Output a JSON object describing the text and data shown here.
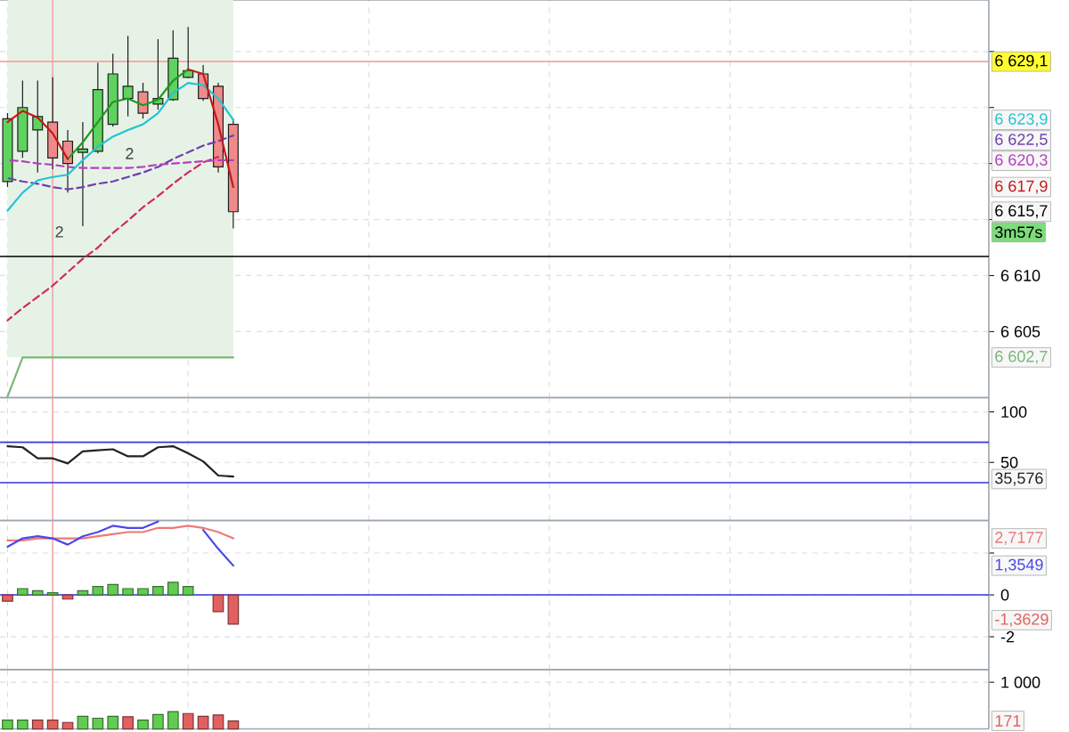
{
  "chart_data": [
    {
      "type": "candlestick",
      "categories": [
        null,
        null,
        null,
        null,
        null,
        null,
        null,
        null,
        null,
        null,
        null,
        null,
        null,
        null,
        null,
        null,
        null,
        null,
        null,
        null,
        null,
        null,
        null,
        null,
        null,
        null,
        null,
        null,
        null,
        null,
        null,
        null,
        null,
        null,
        null,
        null,
        null,
        null,
        null,
        null,
        null,
        null,
        null,
        null,
        null,
        null,
        null,
        null,
        null,
        null,
        null,
        null,
        null,
        null,
        null,
        null,
        null,
        null,
        null,
        null,
        null,
        null,
        null,
        null,
        null,
        null
      ],
      "ohlc": [
        [
          6618.4,
          6624.5,
          6617.9,
          6624.0
        ],
        [
          6621.1,
          6627.4,
          6620.5,
          6625.0
        ],
        [
          6623.0,
          6627.4,
          6619.2,
          6624.2
        ],
        [
          6623.7,
          6627.7,
          6619.5,
          6620.5
        ],
        [
          6622.0,
          6623.0,
          6617.4,
          6620.0
        ],
        [
          6621.0,
          6623.7,
          6614.4,
          6621.3
        ],
        [
          6621.1,
          6629.0,
          6620.9,
          6626.6
        ],
        [
          6623.5,
          6629.8,
          6623.3,
          6628.0
        ],
        [
          6625.8,
          6631.4,
          6624.2,
          6626.9
        ],
        [
          6626.4,
          6627.2,
          6624.0,
          6624.5
        ],
        [
          6625.3,
          6631.1,
          6624.8,
          6625.8
        ],
        [
          6625.7,
          6631.9,
          6625.6,
          6629.4
        ],
        [
          6627.7,
          6632.2,
          6627.6,
          6628.3
        ],
        [
          6628.0,
          6628.8,
          6625.6,
          6625.8
        ],
        [
          6626.9,
          6627.2,
          6619.2,
          6619.7
        ],
        [
          6623.5,
          6624.0,
          6614.2,
          6615.7
        ],
        null,
        null,
        null,
        null,
        null,
        null,
        null,
        null,
        null,
        null,
        null,
        null,
        null,
        null,
        null,
        null,
        null,
        null,
        null,
        null,
        null,
        null,
        null,
        null,
        null,
        null,
        null,
        null,
        null,
        null,
        null,
        null,
        null,
        null,
        null,
        null,
        null,
        null,
        null,
        null,
        null,
        null,
        null,
        null,
        null,
        null,
        null,
        null,
        null,
        null
      ],
      "series": [
        {
          "type": "line",
          "color": "#78b878",
          "values": [
            6599.2,
            6602.7,
            6602.7,
            6602.7,
            6602.7,
            6602.7,
            6602.7,
            6602.7,
            6602.7,
            6602.7,
            6602.7,
            6602.7,
            6602.7,
            6602.7,
            6602.7,
            6602.7,
            null,
            null,
            null,
            null,
            null,
            null,
            null,
            null,
            null,
            null,
            null,
            null,
            null,
            null,
            null,
            null,
            null,
            null,
            null,
            null,
            null,
            null,
            null,
            null,
            null,
            null,
            null,
            null,
            null,
            null,
            null,
            null,
            null,
            null,
            null,
            null,
            null,
            null,
            null,
            null,
            null,
            null,
            null,
            null,
            null,
            null,
            null,
            null,
            null,
            null
          ],
          "lower": [
            6602.7,
            6602.7,
            6602.7,
            6602.7,
            6602.7,
            6602.7,
            6602.7,
            6602.7,
            6602.7,
            6602.7,
            6602.7,
            6602.7,
            6602.7,
            6602.7,
            6602.7,
            6602.7,
            null,
            null,
            null,
            null,
            null,
            null,
            null,
            null,
            null,
            null,
            null,
            null,
            null,
            null,
            null,
            null,
            null,
            null,
            null,
            null,
            null,
            null,
            null,
            null,
            null,
            null,
            null,
            null,
            null,
            null,
            null,
            null,
            null,
            null,
            null,
            null,
            null,
            null,
            null,
            null,
            null,
            null,
            null,
            null,
            null,
            null,
            null,
            null,
            null,
            null
          ],
          "upper": [
            6634.6,
            6634.6,
            6634.6,
            6634.6,
            6634.6,
            6634.6,
            6634.6,
            6634.6,
            6634.6,
            6634.6,
            6634.6,
            6634.6,
            6634.6,
            6634.6,
            6634.6,
            6634.6,
            null,
            null,
            null,
            null,
            null,
            null,
            null,
            null,
            null,
            null,
            null,
            null,
            null,
            null,
            null,
            null,
            null,
            null,
            null,
            null,
            null,
            null,
            null,
            null,
            null,
            null,
            null,
            null,
            null,
            null,
            null,
            null,
            null,
            null,
            null,
            null,
            null,
            null,
            null,
            null,
            null,
            null,
            null,
            null,
            null,
            null,
            null,
            null,
            null,
            null
          ]
        },
        {
          "type": "line",
          "color": "#cf2a5c",
          "line_style": "dashed",
          "values": [
            6606.0,
            6607.1,
            6608.1,
            6609.1,
            6610.3,
            6611.5,
            6612.5,
            6613.8,
            6614.9,
            6616.1,
            6617.1,
            6618.2,
            6619.2,
            6620.1,
            6620.6,
            null,
            null,
            null,
            null,
            null,
            null,
            null,
            null,
            null,
            null,
            null,
            null,
            null,
            null,
            null,
            null,
            null,
            null,
            null,
            null,
            null,
            null,
            null,
            null,
            null,
            null,
            null,
            null,
            null,
            null,
            null,
            null,
            null,
            null,
            null,
            null,
            null,
            null,
            null,
            null,
            null,
            null,
            null,
            null,
            null,
            null,
            null,
            null,
            null,
            null,
            null
          ]
        },
        {
          "type": "line",
          "color": "#7040b0",
          "line_style": "dashed",
          "values": [
            6618.7,
            6618.4,
            6618.2,
            6617.9,
            6617.7,
            6617.9,
            6618.2,
            6618.4,
            6618.8,
            6619.2,
            6619.7,
            6620.4,
            6621.0,
            6621.6,
            6622.0,
            6622.5,
            null,
            null,
            null,
            null,
            null,
            null,
            null,
            null,
            null,
            null,
            null,
            null,
            null,
            null,
            null,
            null,
            null,
            null,
            null,
            null,
            null,
            null,
            null,
            null,
            null,
            null,
            null,
            null,
            null,
            null,
            null,
            null,
            null,
            null,
            null,
            null,
            null,
            null,
            null,
            null,
            null,
            null,
            null,
            null,
            null,
            null,
            null,
            null,
            null,
            null
          ]
        },
        {
          "type": "line",
          "color": "#b540c0",
          "line_style": "dashed",
          "values": [
            6620.3,
            6620.2,
            6620.0,
            6619.9,
            6619.7,
            6619.6,
            6619.6,
            6619.6,
            6619.6,
            6619.7,
            6619.9,
            6620.0,
            6620.1,
            6620.2,
            6620.3,
            6620.3,
            null,
            null,
            null,
            null,
            null,
            null,
            null,
            null,
            null,
            null,
            null,
            null,
            null,
            null,
            null,
            null,
            null,
            null,
            null,
            null,
            null,
            null,
            null,
            null,
            null,
            null,
            null,
            null,
            null,
            null,
            null,
            null,
            null,
            null,
            null,
            null,
            null,
            null,
            null,
            null,
            null,
            null,
            null,
            null,
            null,
            null,
            null,
            null,
            null,
            null
          ]
        },
        {
          "type": "line",
          "color": "#22c4d4",
          "values": [
            6615.8,
            6617.4,
            6618.5,
            6618.8,
            6619.0,
            6620.3,
            6621.5,
            6622.4,
            6623.0,
            6623.5,
            6624.5,
            6626.3,
            6627.2,
            6627.0,
            6625.8,
            6623.9,
            null,
            null,
            null,
            null,
            null,
            null,
            null,
            null,
            null,
            null,
            null,
            null,
            null,
            null,
            null,
            null,
            null,
            null,
            null,
            null,
            null,
            null,
            null,
            null,
            null,
            null,
            null,
            null,
            null,
            null,
            null,
            null,
            null,
            null,
            null,
            null,
            null,
            null,
            null,
            null,
            null,
            null,
            null,
            null,
            null,
            null,
            null,
            null,
            null,
            null
          ]
        },
        {
          "type": "line",
          "color": "#1f9a1f",
          "values": [
            null,
            null,
            null,
            null,
            6620.4,
            6621.9,
            6623.7,
            6625.5,
            6625.8,
            6625.2,
            6625.7,
            6627.4,
            6628.4,
            null,
            null,
            null,
            null,
            null,
            null,
            null,
            null,
            null,
            null,
            null,
            null,
            null,
            null,
            null,
            null,
            null,
            null,
            null,
            null,
            null,
            null,
            null,
            null,
            null,
            null,
            null,
            null,
            null,
            null,
            null,
            null,
            null,
            null,
            null,
            null,
            null,
            null,
            null,
            null,
            null,
            null,
            null,
            null,
            null,
            null,
            null,
            null,
            null,
            null,
            null,
            null,
            null
          ]
        },
        {
          "type": "line",
          "color": "#c41a1a",
          "values": [
            6623.7,
            6624.7,
            6624.1,
            6622.7,
            6620.4,
            null,
            null,
            null,
            null,
            null,
            null,
            null,
            null,
            null,
            null,
            null,
            null,
            null,
            null,
            null,
            null,
            null,
            null,
            null,
            null,
            null,
            null,
            null,
            null,
            null,
            null,
            null,
            null,
            null,
            null,
            null,
            null,
            null,
            null,
            null,
            null,
            null,
            null,
            null,
            null,
            null,
            null,
            null,
            null,
            null,
            null,
            null,
            null,
            null,
            null,
            null,
            null,
            null,
            null,
            null,
            null,
            null,
            null,
            null,
            null,
            null
          ]
        },
        {
          "type": "line",
          "color": "#c41a1a",
          "values": [
            null,
            null,
            null,
            null,
            null,
            null,
            null,
            null,
            null,
            null,
            null,
            null,
            6628.4,
            6628.0,
            6623.5,
            6617.9,
            null,
            null,
            null,
            null,
            null,
            null,
            null,
            null,
            null,
            null,
            null,
            null,
            null,
            null,
            null,
            null,
            null,
            null,
            null,
            null,
            null,
            null,
            null,
            null,
            null,
            null,
            null,
            null,
            null,
            null,
            null,
            null,
            null,
            null,
            null,
            null,
            null,
            null,
            null,
            null,
            null,
            null,
            null,
            null,
            null,
            null,
            null,
            null,
            null,
            null
          ]
        }
      ],
      "ylim": [
        6599.1,
        6634.6
      ],
      "yticks": [
        {
          "value": 6605,
          "label": "6 605"
        },
        {
          "value": 6610,
          "label": "6 610"
        },
        {
          "value": 6615,
          "label": null
        },
        {
          "value": 6620,
          "label": null
        },
        {
          "value": 6625,
          "label": null
        },
        {
          "value": 6630,
          "label": null
        }
      ],
      "tick_labels": "y",
      "grid": true,
      "ref_lines": [
        {
          "axis": "y",
          "value": 6629.1,
          "label": "6 629,1",
          "color": "#f2a4a4"
        },
        {
          "axis": "y",
          "value": 6611.7,
          "color": "#000000"
        }
      ],
      "annotations": [
        "6 623,9",
        "6 622,5",
        "6 620,3",
        "6 617,9",
        "6 615,7",
        "3m57s",
        "6 602,7",
        "2",
        "2"
      ]
    },
    {
      "type": "line",
      "categories": [
        null,
        null,
        null,
        null,
        null,
        null,
        null,
        null,
        null,
        null,
        null,
        null,
        null,
        null,
        null,
        null,
        null,
        null,
        null,
        null,
        null,
        null,
        null,
        null,
        null,
        null,
        null,
        null,
        null,
        null,
        null,
        null,
        null,
        null,
        null,
        null,
        null,
        null,
        null,
        null,
        null,
        null,
        null,
        null,
        null,
        null,
        null,
        null,
        null,
        null,
        null,
        null,
        null,
        null,
        null,
        null,
        null,
        null,
        null,
        null,
        null,
        null,
        null,
        null,
        null,
        null
      ],
      "series": [
        {
          "color": "#222222",
          "values": [
            66,
            65,
            54,
            54,
            49,
            61,
            62,
            63,
            56,
            56,
            65,
            66,
            59,
            51,
            37,
            36,
            null,
            null,
            null,
            null,
            null,
            null,
            null,
            null,
            null,
            null,
            null,
            null,
            null,
            null,
            null,
            null,
            null,
            null,
            null,
            null,
            null,
            null,
            null,
            null,
            null,
            null,
            null,
            null,
            null,
            null,
            null,
            null,
            null,
            null,
            null,
            null,
            null,
            null,
            null,
            null,
            null,
            null,
            null,
            null,
            null,
            null,
            null,
            null,
            null,
            null
          ]
        }
      ],
      "ylim": [
        -7.6,
        114.1
      ],
      "yticks": [
        50,
        100
      ],
      "tick_labels": "y",
      "grid": true,
      "ref_lines": [
        {
          "axis": "y",
          "value": 70,
          "color": "#3535e0"
        },
        {
          "axis": "y",
          "value": 30,
          "color": "#3535e0"
        }
      ],
      "annotations": [
        "35,576"
      ]
    },
    {
      "type": "line",
      "categories": [
        null,
        null,
        null,
        null,
        null,
        null,
        null,
        null,
        null,
        null,
        null,
        null,
        null,
        null,
        null,
        null,
        null,
        null,
        null,
        null,
        null,
        null,
        null,
        null,
        null,
        null,
        null,
        null,
        null,
        null,
        null,
        null,
        null,
        null,
        null,
        null,
        null,
        null,
        null,
        null,
        null,
        null,
        null,
        null,
        null,
        null,
        null,
        null,
        null,
        null,
        null,
        null,
        null,
        null,
        null,
        null,
        null,
        null,
        null,
        null,
        null,
        null,
        null,
        null,
        null,
        null
      ],
      "series": [
        {
          "type": "bar",
          "values": [
            -0.3,
            0.3,
            0.2,
            0.1,
            -0.2,
            0.2,
            0.4,
            0.5,
            0.3,
            0.3,
            0.4,
            0.6,
            0.4,
            null,
            -0.8,
            -1.4,
            null,
            null,
            null,
            null,
            null,
            null,
            null,
            null,
            null,
            null,
            null,
            null,
            null,
            null,
            null,
            null,
            null,
            null,
            null,
            null,
            null,
            null,
            null,
            null,
            null,
            null,
            null,
            null,
            null,
            null,
            null,
            null,
            null,
            null,
            null,
            null,
            null,
            null,
            null,
            null,
            null,
            null,
            null,
            null,
            null,
            null,
            null,
            null,
            null,
            null
          ],
          "colors": [
            "#e26060",
            "#62cc52",
            "#62cc52",
            "#62cc52",
            "#e26060",
            "#62cc52",
            "#62cc52",
            "#62cc52",
            "#62cc52",
            "#62cc52",
            "#62cc52",
            "#62cc52",
            "#62cc52",
            null,
            "#e26060",
            "#e26060",
            null,
            null,
            null,
            null,
            null,
            null,
            null,
            null,
            null,
            null,
            null,
            null,
            null,
            null,
            null,
            null,
            null,
            null,
            null,
            null,
            null,
            null,
            null,
            null,
            null,
            null,
            null,
            null,
            null,
            null,
            null,
            null,
            null,
            null,
            null,
            null,
            null,
            null,
            null,
            null,
            null,
            null,
            null,
            null,
            null,
            null,
            null,
            null,
            null,
            null
          ]
        },
        {
          "type": "line",
          "color": "#ec7a7a",
          "values": [
            2.6,
            2.6,
            2.7,
            2.7,
            2.7,
            2.7,
            2.8,
            2.9,
            3.0,
            3.0,
            3.2,
            3.2,
            3.3,
            3.2,
            3.0,
            2.7,
            null,
            null,
            null,
            null,
            null,
            null,
            null,
            null,
            null,
            null,
            null,
            null,
            null,
            null,
            null,
            null,
            null,
            null,
            null,
            null,
            null,
            null,
            null,
            null,
            null,
            null,
            null,
            null,
            null,
            null,
            null,
            null,
            null,
            null,
            null,
            null,
            null,
            null,
            null,
            null,
            null,
            null,
            null,
            null,
            null,
            null,
            null,
            null,
            null,
            null
          ]
        },
        {
          "type": "line",
          "color": "#4848ea",
          "values": [
            2.3,
            2.7,
            2.8,
            2.7,
            2.4,
            2.8,
            3.0,
            3.3,
            3.2,
            3.2,
            3.5,
            null,
            null,
            null,
            null,
            null,
            null,
            null,
            null,
            null,
            null,
            null,
            null,
            null,
            null,
            null,
            null,
            null,
            null,
            null,
            null,
            null,
            null,
            null,
            null,
            null,
            null,
            null,
            null,
            null,
            null,
            null,
            null,
            null,
            null,
            null,
            null,
            null,
            null,
            null,
            null,
            null,
            null,
            null,
            null,
            null,
            null,
            null,
            null,
            null,
            null,
            null,
            null,
            null,
            null,
            null
          ]
        },
        {
          "type": "line",
          "color": "#4848ea",
          "values": [
            null,
            null,
            null,
            null,
            null,
            null,
            null,
            null,
            null,
            null,
            null,
            null,
            null,
            3.1,
            2.2,
            1.4,
            null,
            null,
            null,
            null,
            null,
            null,
            null,
            null,
            null,
            null,
            null,
            null,
            null,
            null,
            null,
            null,
            null,
            null,
            null,
            null,
            null,
            null,
            null,
            null,
            null,
            null,
            null,
            null,
            null,
            null,
            null,
            null,
            null,
            null,
            null,
            null,
            null,
            null,
            null,
            null,
            null,
            null,
            null,
            null,
            null,
            null,
            null,
            null,
            null,
            null
          ]
        }
      ],
      "ylim": [
        -3.57,
        3.55
      ],
      "yticks": [
        -2,
        0,
        {
          "value": 2,
          "label": null
        }
      ],
      "tick_labels": "y",
      "grid": true,
      "ref_lines": [
        {
          "axis": "y",
          "value": 0,
          "color": "#3535e0"
        }
      ],
      "annotations": [
        "2,7177",
        "1,3549",
        "-1,3629"
      ]
    },
    {
      "type": "bar",
      "categories": [
        null,
        null,
        null,
        null,
        null,
        null,
        null,
        null,
        null,
        null,
        null,
        null,
        null,
        null,
        null,
        null,
        null,
        null,
        null,
        null,
        null,
        null,
        null,
        null,
        null,
        null,
        null,
        null,
        null,
        null,
        null,
        null,
        null,
        null,
        null,
        null,
        null,
        null,
        null,
        null,
        null,
        null,
        null,
        null,
        null,
        null,
        null,
        null,
        null,
        null,
        null,
        null,
        null,
        null,
        null,
        null,
        null,
        null,
        null,
        null,
        null,
        null,
        null,
        null,
        null,
        null
      ],
      "values": [
        190,
        190,
        190,
        190,
        140,
        270,
        230,
        270,
        260,
        190,
        310,
        370,
        330,
        270,
        300,
        171,
        null,
        null,
        null,
        null,
        null,
        null,
        null,
        null,
        null,
        null,
        null,
        null,
        null,
        null,
        null,
        null,
        null,
        null,
        null,
        null,
        null,
        null,
        null,
        null,
        null,
        null,
        null,
        null,
        null,
        null,
        null,
        null,
        null,
        null,
        null,
        null,
        null,
        null,
        null,
        null,
        null,
        null,
        null,
        null,
        null,
        null,
        null,
        null,
        null,
        null
      ],
      "colors": [
        "#62cc52",
        "#62cc52",
        "#e26060",
        "#e26060",
        "#e26060",
        "#62cc52",
        "#62cc52",
        "#62cc52",
        "#e26060",
        "#62cc52",
        "#62cc52",
        "#62cc52",
        "#e26060",
        "#e26060",
        "#e26060",
        "#e26060",
        null,
        null,
        null,
        null,
        null,
        null,
        null,
        null,
        null,
        null,
        null,
        null,
        null,
        null,
        null,
        null,
        null,
        null,
        null,
        null,
        null,
        null,
        null,
        null,
        null,
        null,
        null,
        null,
        null,
        null,
        null,
        null,
        null,
        null,
        null,
        null,
        null,
        null,
        null,
        null,
        null,
        null,
        null,
        null,
        null,
        null,
        null,
        null,
        null,
        null
      ],
      "ylim": [
        0,
        1270
      ],
      "yticks": [
        {
          "value": 1000,
          "label": "1 000"
        }
      ],
      "tick_labels": "y",
      "grid": true,
      "annotations": [
        "171"
      ]
    }
  ]
}
